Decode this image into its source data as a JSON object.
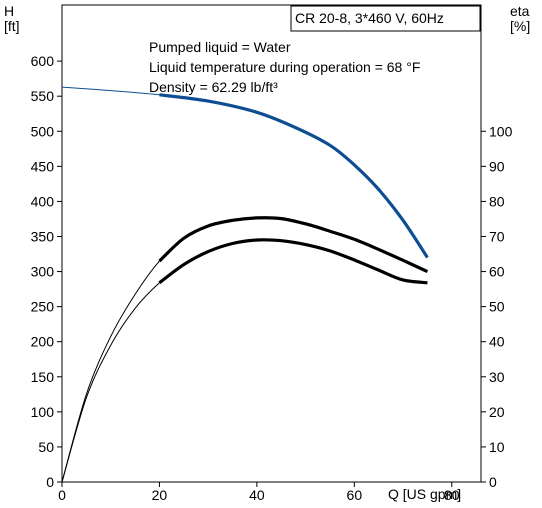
{
  "chart_data": {
    "type": "line",
    "title": "CR 20-8, 3*460 V, 60Hz",
    "annotations": [
      "Pumped liquid = Water",
      "Liquid temperature during operation = 68 °F",
      "Density = 62.29 lb/ft³"
    ],
    "xlabel": "Q [US gpm]",
    "ylabel_left": "H",
    "ylabel_left_unit": "[ft]",
    "ylabel_right": "eta",
    "ylabel_right_unit": "[%]",
    "xlim": [
      0,
      86
    ],
    "ylim_left": [
      0,
      680
    ],
    "ylim_right": [
      0,
      136
    ],
    "x_ticks": [
      0,
      20,
      40,
      60,
      80
    ],
    "y_left_ticks": [
      0,
      50,
      100,
      150,
      200,
      250,
      300,
      350,
      400,
      450,
      500,
      550,
      600
    ],
    "y_right_ticks": [
      0,
      10,
      20,
      30,
      40,
      50,
      60,
      70,
      80,
      90,
      100
    ],
    "grid": false,
    "series": [
      {
        "axis": "left",
        "color": "#0e4d92",
        "x": [
          0,
          10,
          20,
          30,
          40,
          48,
          55,
          60,
          65,
          70,
          75
        ],
        "y": [
          563,
          558,
          552,
          543,
          527,
          505,
          480,
          452,
          417,
          373,
          320
        ],
        "highlight_from_x": 20
      },
      {
        "axis": "right",
        "color": "#000000",
        "x": [
          0,
          5,
          10,
          15,
          20,
          25,
          30,
          35,
          40,
          45,
          50,
          55,
          60,
          65,
          70,
          75
        ],
        "y": [
          0,
          25,
          41.5,
          53.5,
          63,
          69.5,
          73,
          74.6,
          75.3,
          75.1,
          73.6,
          71.5,
          69.2,
          66.3,
          63.2,
          60
        ],
        "highlight_from_x": 20
      },
      {
        "axis": "right",
        "color": "#000000",
        "x": [
          0,
          5,
          10,
          15,
          20,
          25,
          30,
          35,
          40,
          45,
          50,
          55,
          60,
          65,
          70,
          75
        ],
        "y": [
          0,
          24,
          39,
          49.5,
          56.8,
          62,
          65.7,
          68,
          69,
          68.8,
          67.7,
          65.9,
          63.3,
          60.4,
          57.6,
          56.8
        ],
        "highlight_from_x": 20
      }
    ]
  }
}
